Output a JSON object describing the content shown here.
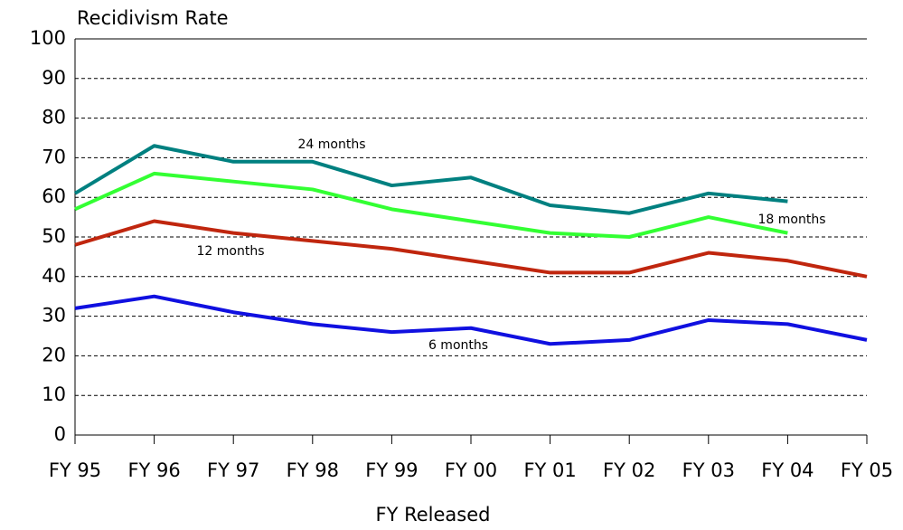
{
  "chart_data": {
    "type": "line",
    "y_label": "Recidivism Rate",
    "x_label": "FY Released",
    "categories": [
      "FY 95",
      "FY 96",
      "FY 97",
      "FY 98",
      "FY 99",
      "FY 00",
      "FY 01",
      "FY 02",
      "FY 03",
      "FY 04",
      "FY 05"
    ],
    "series": [
      {
        "name": "24 months",
        "color": "#008080",
        "values": [
          61,
          73,
          69,
          69,
          63,
          65,
          58,
          56,
          61,
          59,
          null
        ]
      },
      {
        "name": "18 months",
        "color": "#33ff33",
        "values": [
          57,
          66,
          64,
          62,
          57,
          54,
          51,
          50,
          55,
          51,
          null
        ]
      },
      {
        "name": "12 months",
        "color": "#c0260e",
        "values": [
          48,
          54,
          51,
          49,
          47,
          44,
          41,
          41,
          46,
          44,
          40
        ]
      },
      {
        "name": "6 months",
        "color": "#1010e0",
        "values": [
          32,
          35,
          31,
          28,
          26,
          27,
          23,
          24,
          29,
          28,
          24
        ]
      }
    ],
    "ylim": [
      0,
      100
    ],
    "yticks": [
      0,
      10,
      20,
      30,
      40,
      50,
      60,
      70,
      80,
      90,
      100
    ],
    "grid": true
  }
}
